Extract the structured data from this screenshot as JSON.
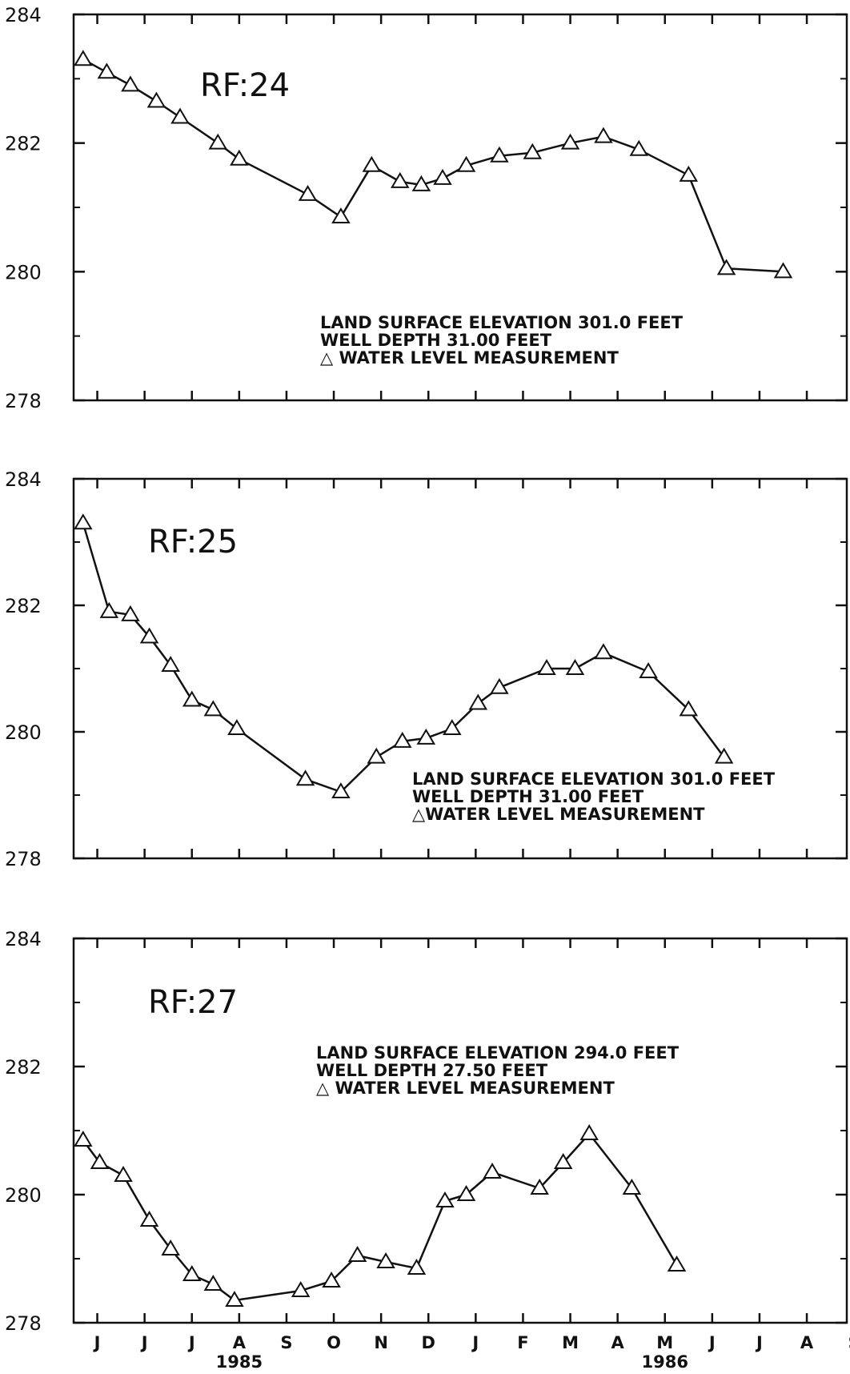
{
  "chart_data": [
    {
      "type": "line",
      "title": "RF:24",
      "ylim": [
        278,
        284
      ],
      "y_ticks": [
        "278",
        "280",
        "282",
        "284"
      ],
      "annotations": [
        "LAND SURFACE ELEVATION 301.0 FEET",
        "WELL DEPTH 31.00 FEET",
        "△ WATER LEVEL MEASUREMENT"
      ],
      "x": [
        0.2,
        0.7,
        1.2,
        1.75,
        2.25,
        3.05,
        3.5,
        4.95,
        5.65,
        6.3,
        6.9,
        7.35,
        7.8,
        8.3,
        9.0,
        9.7,
        10.5,
        11.2,
        11.95,
        13.0,
        13.8,
        15.0
      ],
      "values": [
        283.3,
        283.1,
        282.9,
        282.65,
        282.4,
        282.0,
        281.75,
        281.2,
        280.85,
        281.65,
        281.4,
        281.35,
        281.45,
        281.65,
        281.8,
        281.85,
        282.0,
        282.1,
        281.9,
        281.5,
        280.05,
        280.0
      ]
    },
    {
      "type": "line",
      "title": "RF:25",
      "ylim": [
        278,
        284
      ],
      "y_ticks": [
        "278",
        "280",
        "282",
        "284"
      ],
      "annotations": [
        "LAND SURFACE ELEVATION 301.0 FEET",
        "WELL DEPTH 31.00 FEET",
        "△WATER LEVEL MEASUREMENT"
      ],
      "x": [
        0.2,
        0.75,
        1.2,
        1.6,
        2.05,
        2.5,
        2.95,
        3.45,
        4.9,
        5.65,
        6.4,
        6.95,
        7.45,
        8.0,
        8.55,
        9.0,
        10.0,
        10.6,
        11.2,
        12.15,
        13.0,
        13.75
      ],
      "values": [
        283.3,
        281.9,
        281.85,
        281.5,
        281.05,
        280.5,
        280.35,
        280.05,
        279.25,
        279.05,
        279.6,
        279.85,
        279.9,
        280.05,
        280.45,
        280.7,
        281.0,
        281.0,
        281.25,
        280.95,
        280.35,
        279.6
      ]
    },
    {
      "type": "line",
      "title": "RF:27",
      "ylim": [
        278,
        284
      ],
      "y_ticks": [
        "278",
        "280",
        "282",
        "284"
      ],
      "annotations": [
        "LAND SURFACE ELEVATION 294.0 FEET",
        "WELL DEPTH 27.50 FEET",
        "△ WATER LEVEL MEASUREMENT"
      ],
      "x_labels": [
        "J",
        "J",
        "J",
        "A",
        "S",
        "O",
        "N",
        "D",
        "J",
        "F",
        "M",
        "A",
        "M",
        "J",
        "J",
        "A",
        "S"
      ],
      "year_labels": [
        "1985",
        "1986"
      ],
      "x": [
        0.2,
        0.55,
        1.05,
        1.6,
        2.05,
        2.5,
        2.95,
        3.4,
        4.8,
        5.45,
        6.0,
        6.6,
        7.25,
        7.85,
        8.3,
        8.85,
        9.85,
        10.35,
        10.9,
        11.8,
        12.75
      ],
      "values": [
        280.85,
        280.5,
        280.3,
        279.6,
        279.15,
        278.75,
        278.6,
        278.35,
        278.5,
        278.65,
        279.05,
        278.95,
        278.85,
        279.9,
        280.0,
        280.35,
        280.1,
        280.5,
        280.95,
        280.1,
        278.9
      ]
    }
  ]
}
